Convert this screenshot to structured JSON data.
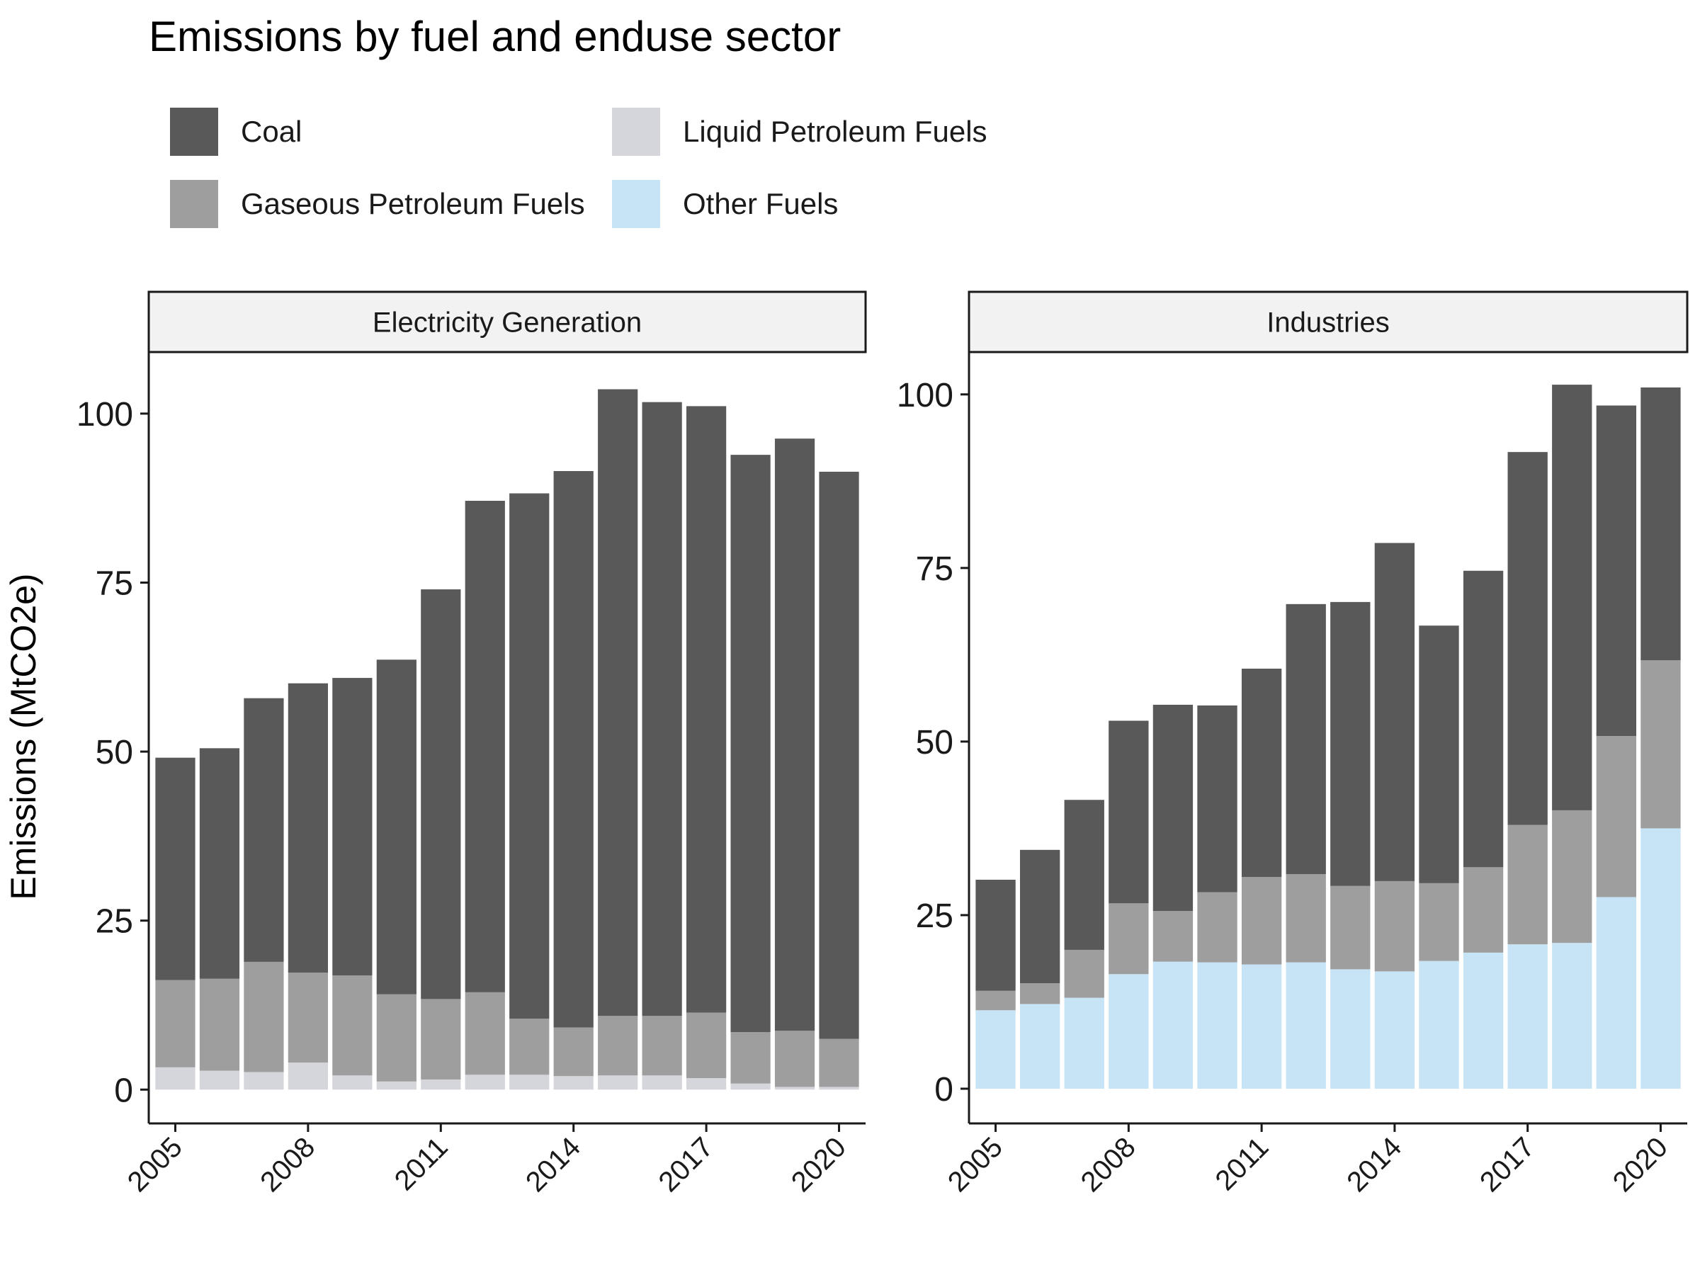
{
  "chart_data": {
    "type": "bar",
    "stacked": true,
    "title": "Emissions by fuel and enduse sector",
    "ylabel": "Emissions (MtCO2e)",
    "xlabel": "",
    "legend": {
      "placement": "top",
      "entries": [
        "Coal",
        "Liquid Petroleum Fuels",
        "Gaseous Petroleum Fuels",
        "Other Fuels"
      ]
    },
    "colors": {
      "Coal": "#595959",
      "Gaseous Petroleum Fuels": "#9e9e9e",
      "Liquid Petroleum Fuels": "#d5d6dc",
      "Other Fuels": "#c6e4f5"
    },
    "stack_order": [
      "Other Fuels",
      "Liquid Petroleum Fuels",
      "Gaseous Petroleum Fuels",
      "Coal"
    ],
    "years": [
      2005,
      2006,
      2007,
      2008,
      2009,
      2010,
      2011,
      2012,
      2013,
      2014,
      2015,
      2016,
      2017,
      2018,
      2019,
      2020
    ],
    "x_ticks": [
      "2005",
      "2008",
      "2011",
      "2014",
      "2017",
      "2020"
    ],
    "panels": [
      {
        "label": "Electricity Generation",
        "ylim": [
          -5,
          109
        ],
        "y_ticks": [
          "0",
          "25",
          "50",
          "75",
          "100"
        ],
        "series": [
          {
            "name": "Other Fuels",
            "values": [
              0,
              0,
              0,
              0,
              0,
              0,
              0,
              0,
              0,
              0,
              0,
              0,
              0,
              0,
              0,
              0
            ]
          },
          {
            "name": "Liquid Petroleum Fuels",
            "values": [
              3.3,
              2.8,
              2.6,
              4.0,
              2.1,
              1.2,
              1.5,
              2.2,
              2.2,
              2.0,
              2.1,
              2.1,
              1.7,
              0.9,
              0.4,
              0.4
            ]
          },
          {
            "name": "Gaseous Petroleum Fuels",
            "values": [
              12.9,
              13.6,
              16.3,
              13.3,
              14.8,
              12.9,
              11.9,
              12.2,
              8.3,
              7.2,
              8.8,
              8.8,
              9.7,
              7.6,
              8.3,
              7.1
            ]
          },
          {
            "name": "Coal",
            "values": [
              32.9,
              34.1,
              39.0,
              42.8,
              44.0,
              49.5,
              60.6,
              72.7,
              77.7,
              82.3,
              92.7,
              90.8,
              89.7,
              85.4,
              87.6,
              83.9
            ]
          }
        ]
      },
      {
        "label": "Industries",
        "ylim": [
          -5,
          106
        ],
        "y_ticks": [
          "0",
          "25",
          "50",
          "75",
          "100"
        ],
        "series": [
          {
            "name": "Other Fuels",
            "values": [
              11.3,
              12.2,
              13.1,
              16.5,
              18.3,
              18.2,
              17.9,
              18.2,
              17.2,
              16.9,
              18.4,
              19.6,
              20.8,
              21.0,
              27.6,
              37.5
            ]
          },
          {
            "name": "Liquid Petroleum Fuels",
            "values": [
              0,
              0,
              0,
              0,
              0,
              0,
              0,
              0,
              0,
              0,
              0,
              0,
              0,
              0,
              0,
              0
            ]
          },
          {
            "name": "Gaseous Petroleum Fuels",
            "values": [
              2.8,
              3.0,
              6.9,
              10.2,
              7.3,
              10.1,
              12.6,
              12.7,
              12.0,
              13.0,
              11.2,
              12.3,
              17.2,
              19.1,
              23.2,
              24.2
            ]
          },
          {
            "name": "Coal",
            "values": [
              16.0,
              19.2,
              21.6,
              26.3,
              29.7,
              26.9,
              30.0,
              38.9,
              40.9,
              48.7,
              37.1,
              42.7,
              53.7,
              61.3,
              47.6,
              39.3
            ]
          }
        ]
      }
    ]
  }
}
